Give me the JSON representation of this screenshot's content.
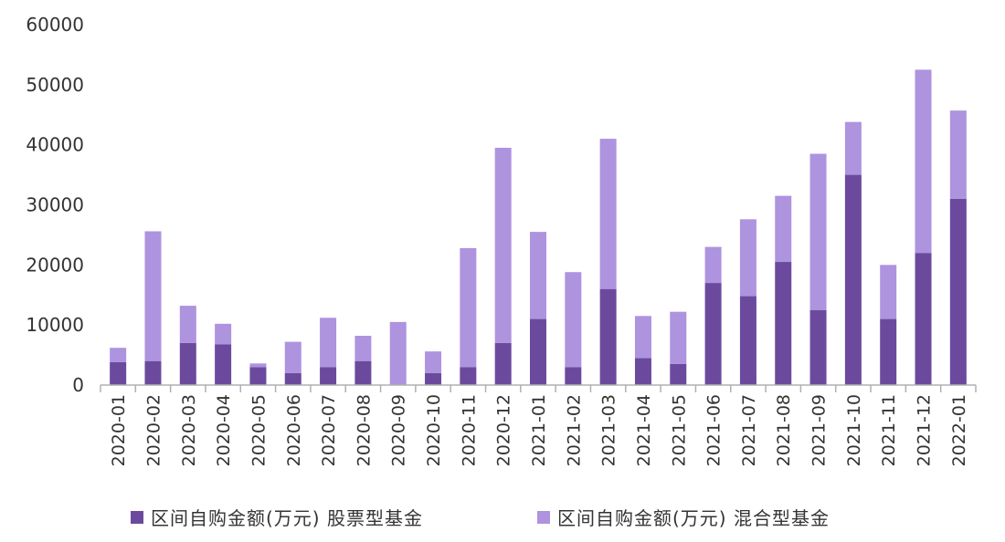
{
  "chart_data": {
    "type": "bar",
    "stacked": true,
    "categories": [
      "2020-01",
      "2020-02",
      "2020-03",
      "2020-04",
      "2020-05",
      "2020-06",
      "2020-07",
      "2020-08",
      "2020-09",
      "2020-10",
      "2020-11",
      "2020-12",
      "2021-01",
      "2021-02",
      "2021-03",
      "2021-04",
      "2021-05",
      "2021-06",
      "2021-07",
      "2021-08",
      "2021-09",
      "2021-10",
      "2021-11",
      "2021-12",
      "2022-01"
    ],
    "series": [
      {
        "name": "区间自购金额(万元) 股票型基金",
        "color": "#6b4a9e",
        "values": [
          3800,
          4000,
          7000,
          6800,
          3000,
          2000,
          3000,
          4000,
          0,
          2000,
          3000,
          7000,
          11000,
          3000,
          16000,
          4500,
          3500,
          17000,
          14800,
          20500,
          12500,
          35000,
          11000,
          22000,
          31000
        ]
      },
      {
        "name": "区间自购金额(万元) 混合型基金",
        "color": "#ae93df",
        "values": [
          2400,
          21600,
          6200,
          3400,
          600,
          5200,
          8200,
          4200,
          10500,
          3600,
          19800,
          32500,
          14500,
          15800,
          25000,
          7000,
          8700,
          6000,
          12800,
          11000,
          26000,
          8800,
          9000,
          30500,
          14700
        ]
      }
    ],
    "ylim": [
      0,
      60000
    ],
    "yticks": [
      "0",
      "10000",
      "20000",
      "30000",
      "40000",
      "50000",
      "60000"
    ],
    "grid": false,
    "legend_position": "bottom"
  },
  "legend": {
    "item1": "区间自购金额(万元) 股票型基金",
    "item2": "区间自购金额(万元) 混合型基金",
    "color1": "#6b4a9e",
    "color2": "#ae93df"
  }
}
